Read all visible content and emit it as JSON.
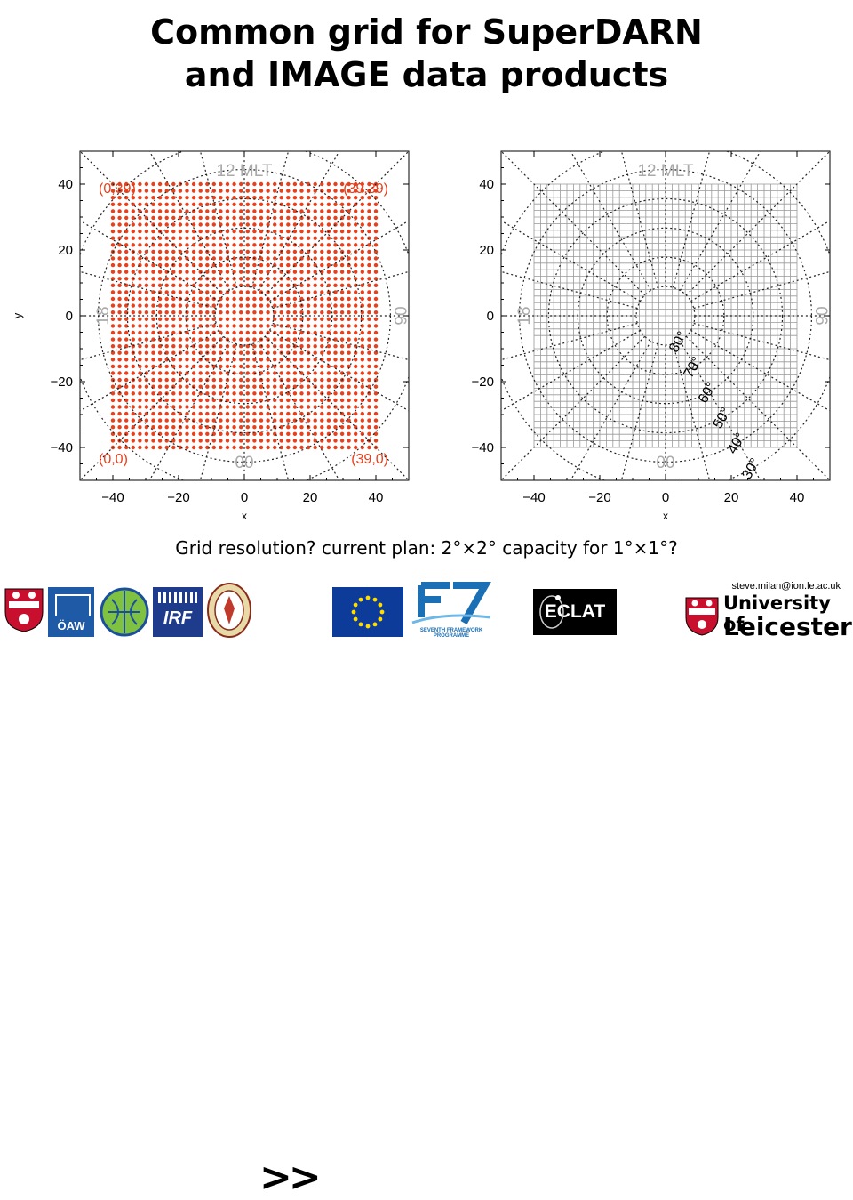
{
  "title_line1": "Common grid for SuperDARN",
  "title_line2": "and IMAGE data products",
  "caption": "Grid resolution?  current plan: 2°×2°   capacity for 1°×1°?",
  "email": "steve.milan@ion.le.ac.uk",
  "arrows": ">>",
  "left_plot": {
    "ylabel": "y",
    "xlabel": "x",
    "mlt_top": "12 MLT",
    "mlt_bottom": "00",
    "mlt_left": "18",
    "mlt_right": "06",
    "corner_tl": "(0,39)",
    "corner_tr": "(39,39)",
    "corner_bl": "(0,0)",
    "corner_br": "(39,0)",
    "dot_color": "#e8401c",
    "grid_points": 40
  },
  "right_plot": {
    "xlabel": "x",
    "mlt_top": "12 MLT",
    "mlt_bottom": "00",
    "mlt_left": "18",
    "mlt_right": "06",
    "lat_labels": [
      "80°",
      "70°",
      "60°",
      "50°",
      "40°",
      "30°"
    ],
    "grid_cells": 40
  },
  "axis": {
    "xlim": [
      -50,
      50
    ],
    "ylim": [
      -50,
      50
    ],
    "xticks": [
      "−40",
      "−20",
      "0",
      "20",
      "40"
    ],
    "yticks": [
      "40",
      "20",
      "0",
      "−20",
      "−40"
    ],
    "tick_values": [
      -40,
      -20,
      0,
      20,
      40
    ],
    "ytick_values": [
      40,
      20,
      0,
      -20,
      -40
    ],
    "grid_extent": [
      -40,
      40
    ],
    "lat_circles_colat": [
      10,
      20,
      30,
      40,
      50,
      60
    ],
    "mlt_meridians_hours": 24
  },
  "logos": {
    "oaw": "ÖAW",
    "irf": "IRF",
    "eclat": "ECLAT",
    "fp7_caption": "SEVENTH FRAMEWORK PROGRAMME",
    "uni_line1": "University of",
    "uni_line2": "Leicester"
  }
}
